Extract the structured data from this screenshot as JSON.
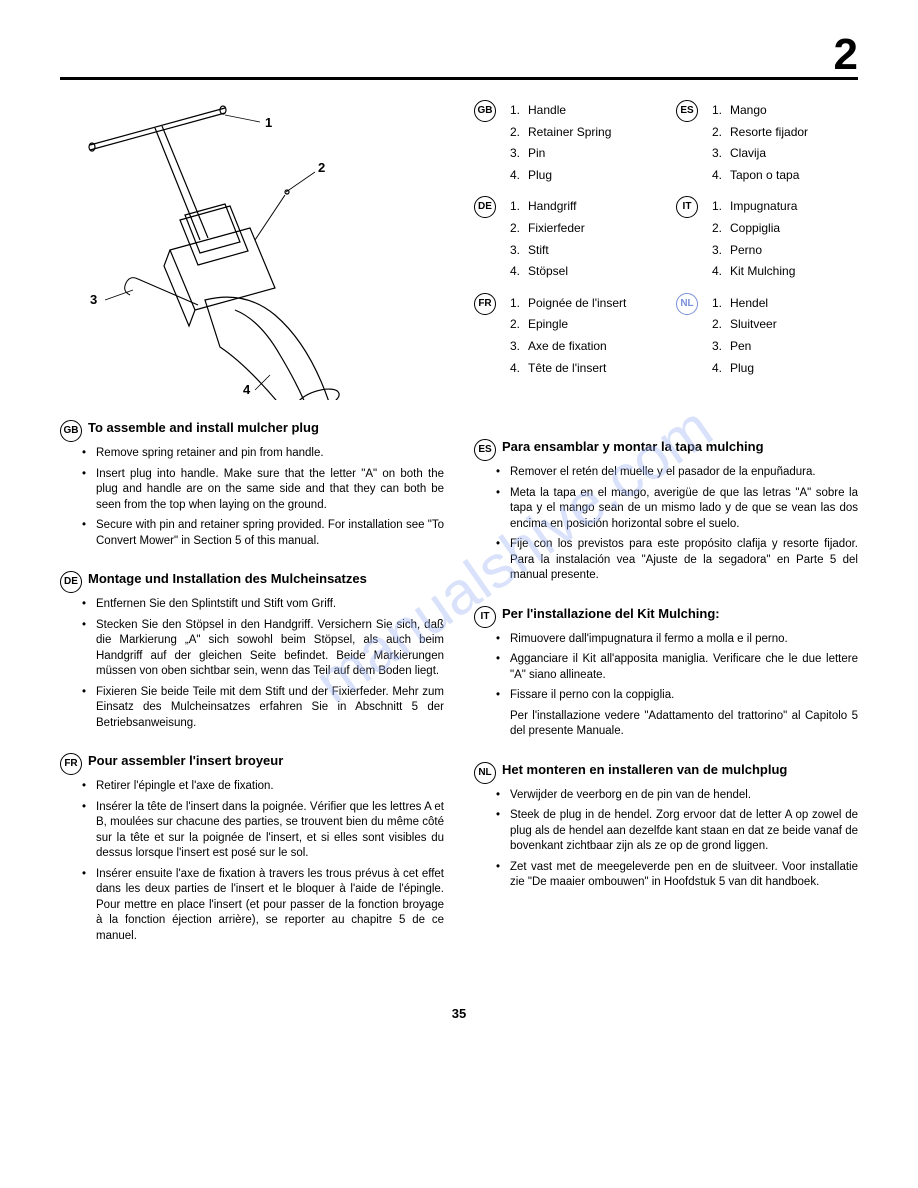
{
  "chapter": "2",
  "page_number": "35",
  "callouts": [
    "1",
    "2",
    "3",
    "4"
  ],
  "legends": [
    {
      "badge": "GB",
      "items": [
        "Handle",
        "Retainer Spring",
        "Pin",
        "Plug"
      ]
    },
    {
      "badge": "ES",
      "items": [
        "Mango",
        "Resorte fijador",
        "Clavija",
        "Tapon o tapa"
      ]
    },
    {
      "badge": "DE",
      "items": [
        "Handgriff",
        "Fixierfeder",
        "Stift",
        "Stöpsel"
      ]
    },
    {
      "badge": "IT",
      "items": [
        "Impugnatura",
        "Coppiglia",
        "Perno",
        "Kit Mulching"
      ]
    },
    {
      "badge": "FR",
      "items": [
        "Poignée de l'insert",
        "Epingle",
        "Axe de fixation",
        "Tête de l'insert"
      ]
    },
    {
      "badge": "NL",
      "items": [
        "Hendel",
        "Sluitveer",
        "Pen",
        "Plug"
      ],
      "blue": true
    }
  ],
  "sections_left": [
    {
      "badge": "GB",
      "title": "To assemble and install mulcher plug",
      "bullets": [
        "Remove spring retainer and pin from handle.",
        "Insert plug into handle. Make sure that the letter \"A\" on both the plug and handle are on the same side and that they can both be seen from the top when laying on the ground.",
        "Secure with pin and retainer spring provided. For installation see \"To Convert Mower\" in Section 5 of this manual."
      ]
    },
    {
      "badge": "DE",
      "title": "Montage und Installation des Mulcheinsatzes",
      "bullets": [
        "Entfernen Sie den Splintstift und Stift vom Griff.",
        "Stecken Sie den Stöpsel in den Handgriff. Versichern Sie sich, daß die Markierung „A\" sich sowohl beim Stöpsel, als auch beim Handgriff auf der gleichen Seite befindet. Beide Markierungen müssen von oben sichtbar sein, wenn das Teil auf dem Boden liegt.",
        "Fixieren Sie beide Teile mit dem Stift und der Fixierfeder. Mehr zum Einsatz des Mulcheinsatzes erfahren Sie in Abschnitt 5 der Betriebsanweisung."
      ]
    },
    {
      "badge": "FR",
      "title": "Pour assembler l'insert broyeur",
      "bullets": [
        "Retirer l'épingle et l'axe de fixation.",
        "Insérer la tête de l'insert dans la poignée. Vérifier que les lettres A et B, moulées sur chacune des parties, se trouvent bien du même côté sur la tête et sur la poignée de l'insert, et si elles sont visibles du dessus lorsque l'insert est posé sur le sol.",
        "Insérer ensuite l'axe de fixation à travers les trous prévus à cet effet dans les deux parties de l'insert et le bloquer à l'aide de l'épingle. Pour mettre en place l'insert (et pour passer de la fonction broyage à la fonction éjection arrière), se reporter au chapitre 5 de ce manuel."
      ]
    }
  ],
  "sections_right": [
    {
      "badge": "ES",
      "title": "Para ensamblar y montar la tapa mulching",
      "bullets": [
        "Remover el retén del muelle y el pasador de la enpuñadura.",
        "Meta la tapa en el mango, averigüe de que las letras \"A\" sobre la tapa y el mango sean de un mismo lado y de que se vean las dos encima en posición horizontal sobre el suelo.",
        "Fije con los previstos para este propósito clafija y resorte fijador. Para la instalación vea \"Ajuste de la segadora\" en Parte 5 del manual presente."
      ]
    },
    {
      "badge": "IT",
      "title": "Per l'installazione del Kit Mulching:",
      "bullets": [
        "Rimuovere dall'impugnatura il fermo a molla e il perno.",
        "Agganciare il Kit all'apposita maniglia. Verificare che le due lettere \"A\" siano allineate.",
        "Fissare il perno con la coppiglia."
      ],
      "tail": "Per l'installazione vedere \"Adattamento del trattorino\" al Capitolo 5 del presente Manuale."
    },
    {
      "badge": "NL",
      "title": "Het monteren en installeren van de mulchplug",
      "bullets": [
        "Verwijder de veerborg en de pin van de hendel.",
        "Steek de plug in de hendel. Zorg ervoor dat de letter A op zowel de plug als de hendel aan dezelfde kant staan en dat ze beide vanaf de bovenkant zichtbaar zijn als ze op de grond liggen.",
        "Zet vast met de meegeleverde pen en de sluitveer. Voor installatie zie \"De maaier ombouwen\" in Hoofdstuk 5 van dit handboek."
      ]
    }
  ]
}
